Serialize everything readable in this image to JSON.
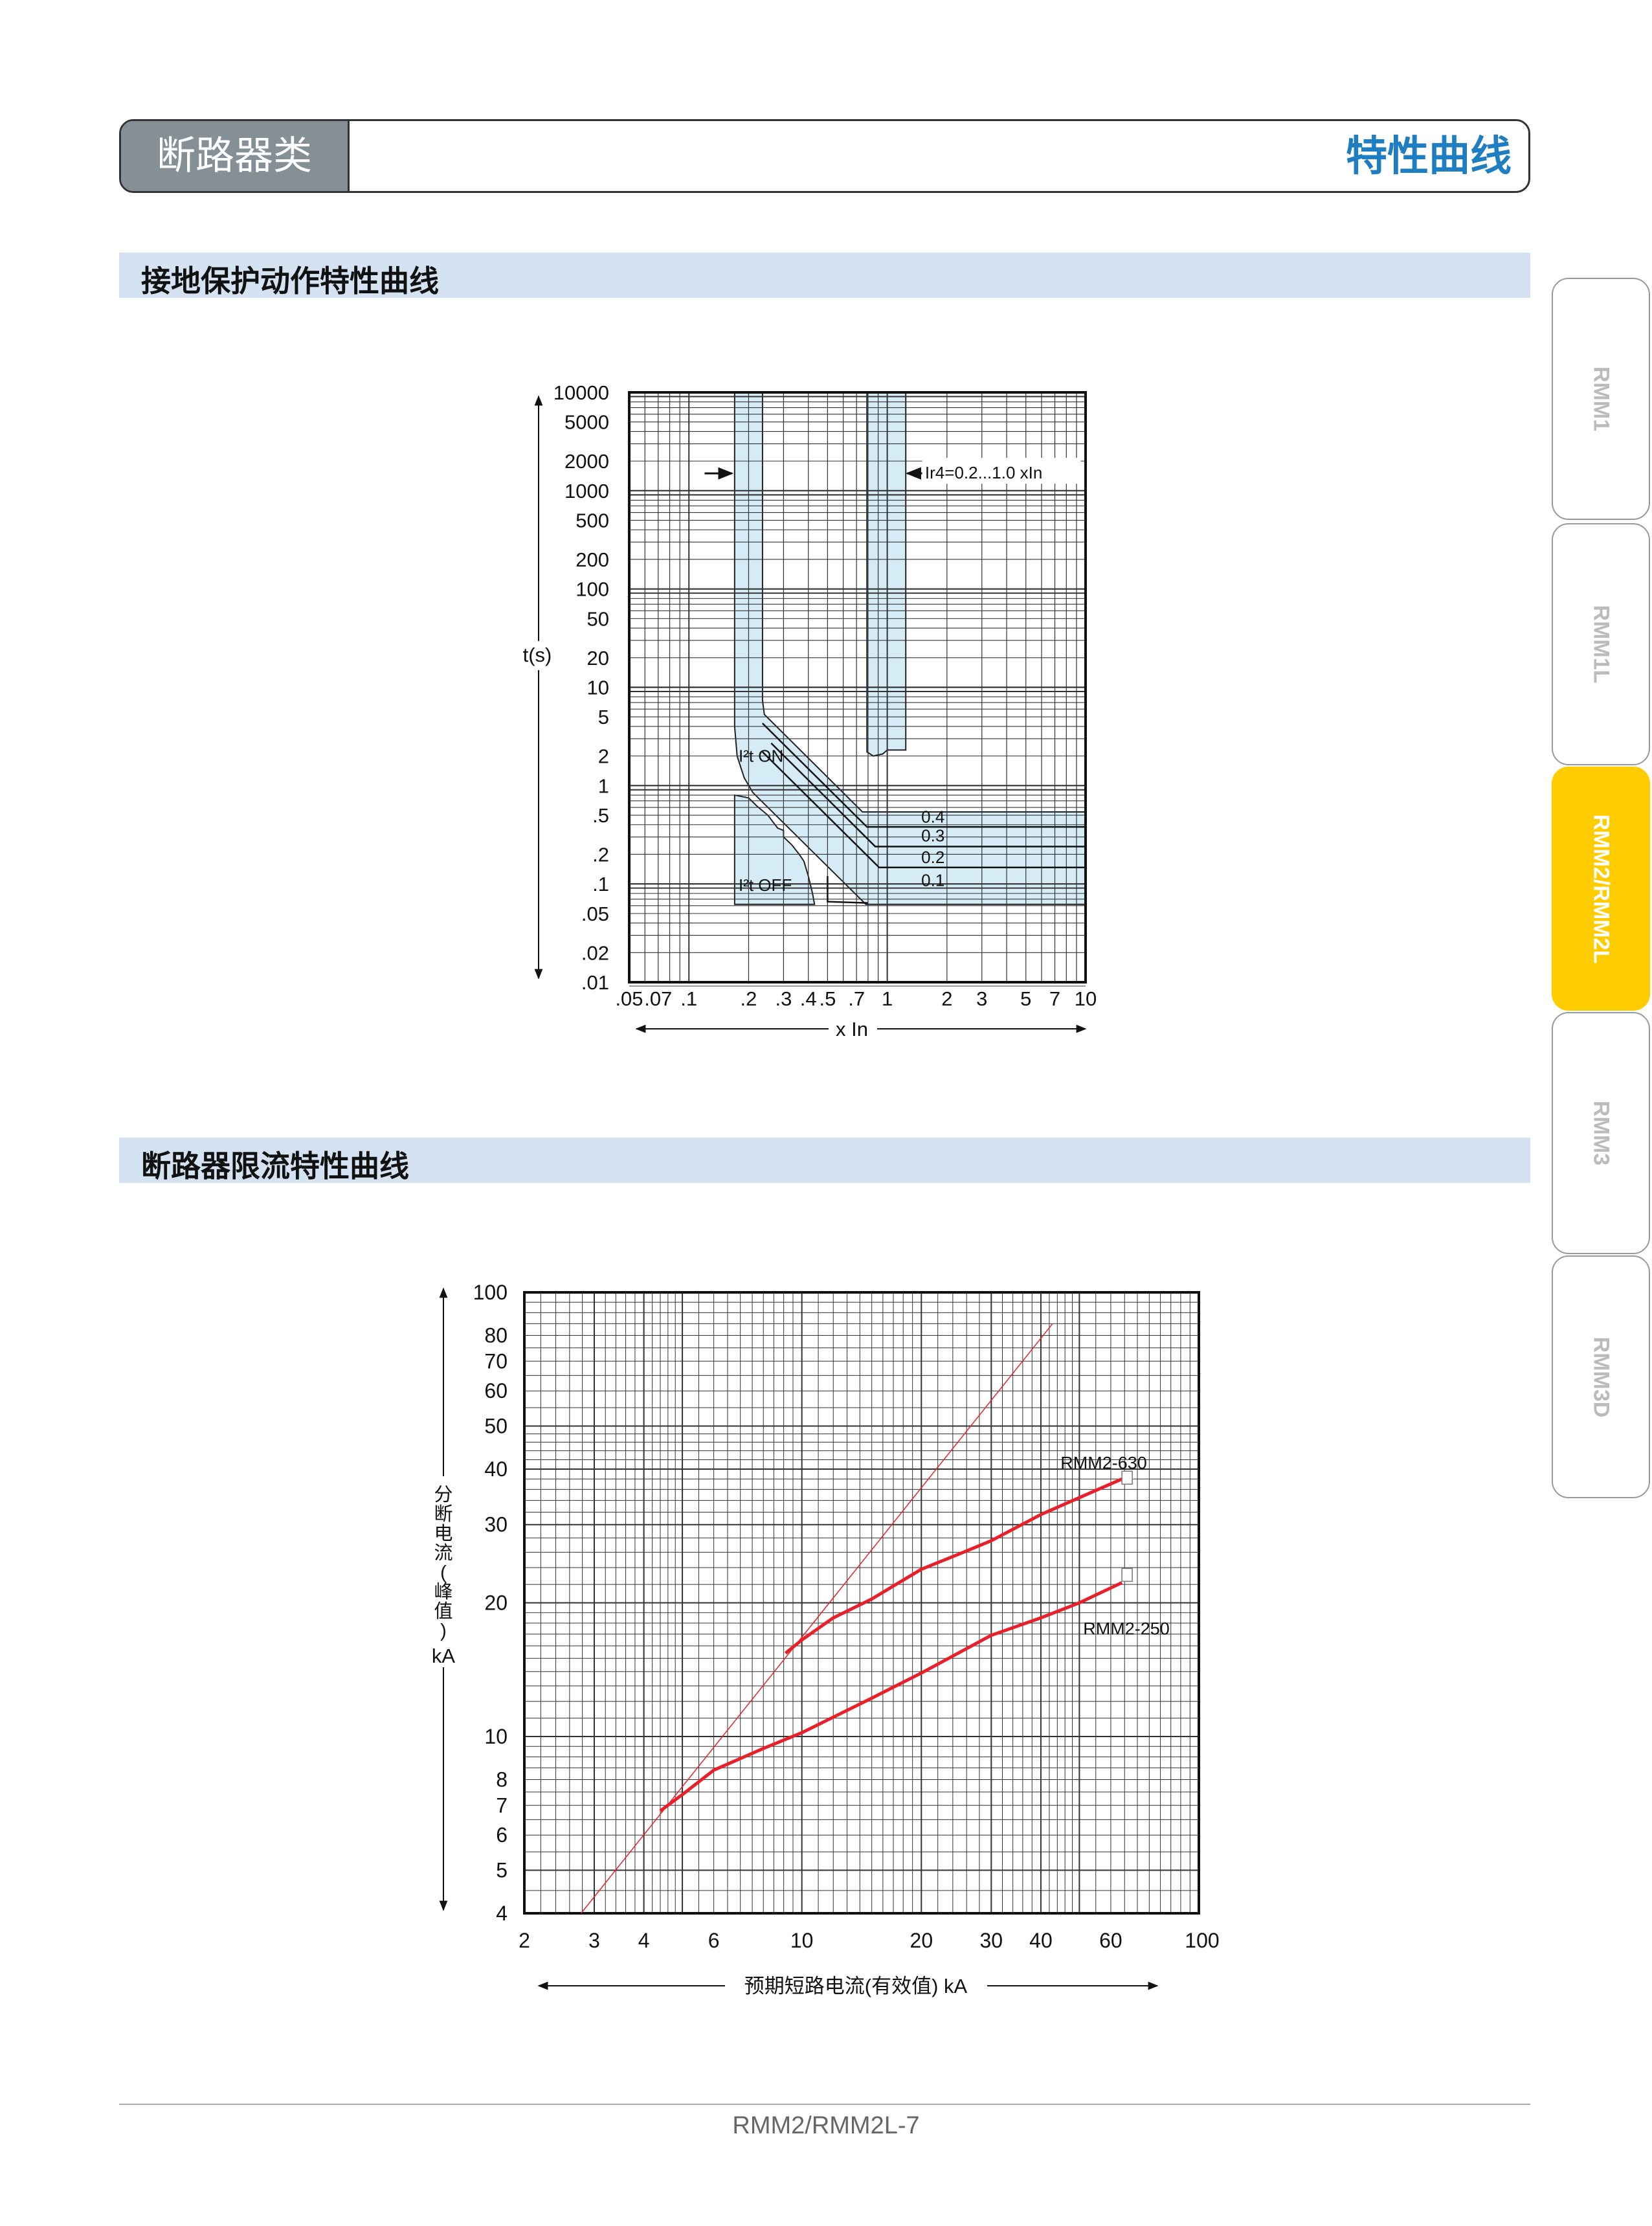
{
  "header": {
    "category": "断路器类",
    "title": "特性曲线"
  },
  "sections": [
    {
      "title": "接地保护动作特性曲线"
    },
    {
      "title": "断路器限流特性曲线"
    }
  ],
  "side_tabs": [
    {
      "label": "RMM1",
      "active": false
    },
    {
      "label": "RMM1L",
      "active": false
    },
    {
      "label": "RMM2/RMM2L",
      "active": true
    },
    {
      "label": "RMM3",
      "active": false
    },
    {
      "label": "RMM3D",
      "active": false
    }
  ],
  "footer": {
    "page": "RMM2/RMM2L-7"
  },
  "colors": {
    "accent_blue": "#1f7dc1",
    "tab_active": "#ffcc00",
    "band_fill": "#d5ecf6",
    "curve_red": "#e8202a",
    "section_bar": "#d4e2f2"
  },
  "chart_data": [
    {
      "type": "line",
      "ylabel": "t(s)",
      "xlabel": "x In",
      "xscale": "log",
      "yscale": "log",
      "xlim": [
        0.05,
        10
      ],
      "ylim": [
        0.01,
        10000
      ],
      "grid": true,
      "xticks": [
        {
          "v": 0.05,
          "l": ".05"
        },
        {
          "v": 0.07,
          "l": ".07"
        },
        {
          "v": 0.1,
          "l": ".1"
        },
        {
          "v": 0.2,
          "l": ".2"
        },
        {
          "v": 0.3,
          "l": ".3"
        },
        {
          "v": 0.4,
          "l": ".4"
        },
        {
          "v": 0.5,
          "l": ".5"
        },
        {
          "v": 0.7,
          "l": ".7"
        },
        {
          "v": 1,
          "l": "1"
        },
        {
          "v": 2,
          "l": "2"
        },
        {
          "v": 3,
          "l": "3"
        },
        {
          "v": 5,
          "l": "5"
        },
        {
          "v": 7,
          "l": "7"
        },
        {
          "v": 10,
          "l": "10"
        }
      ],
      "yticks": [
        {
          "v": 10000,
          "l": "10000"
        },
        {
          "v": 5000,
          "l": "5000"
        },
        {
          "v": 2000,
          "l": "2000"
        },
        {
          "v": 1000,
          "l": "1000"
        },
        {
          "v": 500,
          "l": "500"
        },
        {
          "v": 200,
          "l": "200"
        },
        {
          "v": 100,
          "l": "100"
        },
        {
          "v": 50,
          "l": "50"
        },
        {
          "v": 20,
          "l": "20"
        },
        {
          "v": 10,
          "l": "10"
        },
        {
          "v": 5,
          "l": "5"
        },
        {
          "v": 2,
          "l": "2"
        },
        {
          "v": 1,
          "l": "1"
        },
        {
          "v": 0.5,
          "l": ".5"
        },
        {
          "v": 0.2,
          "l": ".2"
        },
        {
          "v": 0.1,
          "l": ".1"
        },
        {
          "v": 0.05,
          "l": ".05"
        },
        {
          "v": 0.02,
          "l": ".02"
        },
        {
          "v": 0.01,
          "l": ".01"
        }
      ],
      "bands": [
        {
          "name": "ir4-0.2-band",
          "points": [
            [
              0.17,
              10000
            ],
            [
              0.17,
              4
            ],
            [
              0.175,
              2
            ],
            [
              0.19,
              1.2
            ],
            [
              0.21,
              0.85
            ],
            [
              0.78,
              0.062
            ],
            [
              10,
              0.062
            ],
            [
              10,
              0.54
            ],
            [
              0.75,
              0.54
            ],
            [
              0.24,
              5.3
            ],
            [
              0.235,
              7.4
            ],
            [
              0.235,
              10000
            ]
          ]
        },
        {
          "name": "ir4-1.0-band",
          "points": [
            [
              0.79,
              10000
            ],
            [
              0.79,
              2.2
            ],
            [
              0.85,
              2.0
            ],
            [
              0.95,
              2.1
            ],
            [
              1.0,
              2.3
            ],
            [
              1.24,
              2.3
            ],
            [
              1.24,
              10000
            ]
          ]
        },
        {
          "name": "i2t-off-band",
          "points": [
            [
              0.17,
              0.8
            ],
            [
              0.2,
              0.75
            ],
            [
              0.22,
              0.62
            ],
            [
              0.25,
              0.5
            ],
            [
              0.28,
              0.37
            ],
            [
              0.3,
              0.35
            ],
            [
              0.3,
              0.3
            ],
            [
              0.33,
              0.25
            ],
            [
              0.36,
              0.2
            ],
            [
              0.38,
              0.17
            ],
            [
              0.4,
              0.12
            ],
            [
              0.42,
              0.08
            ],
            [
              0.43,
              0.062
            ],
            [
              0.17,
              0.062
            ]
          ]
        }
      ],
      "curves": [
        {
          "label": "0.4",
          "level": 0.38,
          "points": [
            [
              0.235,
              4.3
            ],
            [
              0.79,
              0.38
            ],
            [
              10,
              0.38
            ]
          ],
          "label_at": [
            1.7,
            0.42
          ]
        },
        {
          "label": "0.3",
          "level": 0.24,
          "points": [
            [
              0.26,
              2.7
            ],
            [
              0.87,
              0.24
            ],
            [
              10,
              0.24
            ]
          ],
          "label_at": [
            1.7,
            0.27
          ]
        },
        {
          "label": "0.2",
          "level": 0.147,
          "points": [
            [
              0.235,
              2.2
            ],
            [
              0.91,
              0.147
            ],
            [
              10,
              0.147
            ]
          ],
          "label_at": [
            1.7,
            0.163
          ]
        },
        {
          "label": "0.1",
          "level": 0.062,
          "points": [
            [
              0.5,
              0.12
            ],
            [
              0.5,
              0.066
            ],
            [
              0.8,
              0.064
            ]
          ],
          "label_at": [
            1.7,
            0.095
          ]
        }
      ],
      "annotations": [
        {
          "text": "I²t ON",
          "at": [
            0.178,
            1.75
          ]
        },
        {
          "text": "I²t OFF",
          "at": [
            0.178,
            0.085
          ]
        },
        {
          "text": "Ir4=0.2...1.0 xIn",
          "at": [
            1.55,
            1500
          ]
        }
      ]
    },
    {
      "type": "line",
      "ylabel": "分断电流(峰值) kA",
      "ylabel_parts": [
        "分",
        "断",
        "电",
        "流",
        "(",
        "峰",
        "值",
        ")",
        "kA"
      ],
      "xlabel": "预期短路电流(有效值) kA",
      "xscale": "log",
      "yscale": "log",
      "xlim": [
        2,
        100
      ],
      "ylim": [
        4,
        100
      ],
      "grid": true,
      "xticks": [
        2,
        3,
        4,
        6,
        10,
        20,
        30,
        40,
        60,
        100
      ],
      "yticks": [
        4,
        5,
        6,
        7,
        8,
        10,
        20,
        30,
        40,
        50,
        60,
        70,
        80,
        100
      ],
      "reference_line": [
        [
          2.78,
          4
        ],
        [
          42.8,
          85
        ]
      ],
      "series": [
        {
          "name": "RMM2-630",
          "x": [
            9.1,
            10,
            12,
            15,
            20,
            25,
            30,
            40,
            50,
            64
          ],
          "y": [
            15.4,
            16.5,
            18.5,
            20.4,
            23.8,
            25.8,
            27.6,
            31.6,
            34.5,
            38
          ]
        },
        {
          "name": "RMM2-250",
          "x": [
            4.4,
            5,
            6,
            8,
            10,
            15,
            20,
            30,
            40,
            50,
            64
          ],
          "y": [
            6.8,
            7.4,
            8.4,
            9.4,
            10.2,
            12.2,
            13.9,
            16.9,
            18.5,
            20,
            22.2
          ]
        }
      ]
    }
  ]
}
